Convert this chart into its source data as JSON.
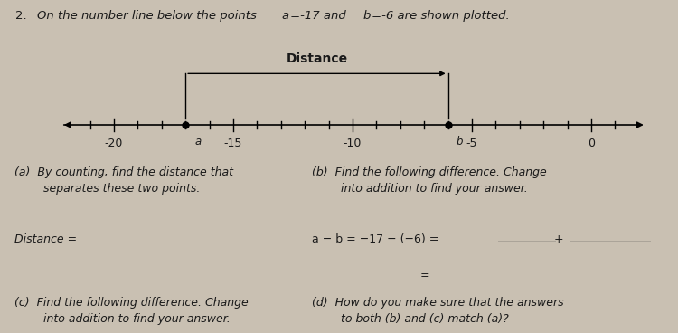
{
  "title_num": "2.",
  "title_text": " On the number line below the points ",
  "title_math": "a​=​-17",
  "title_and": " and ",
  "title_math2": "b​=​-6",
  "title_end": " are shown plotted.",
  "bg_color": "#c9c0b2",
  "number_line": {
    "xmin": -22,
    "xmax": 2,
    "ticks_minor": [
      -21,
      -20,
      -19,
      -18,
      -17,
      -16,
      -15,
      -14,
      -13,
      -12,
      -11,
      -10,
      -9,
      -8,
      -7,
      -6,
      -5,
      -4,
      -3,
      -2,
      -1,
      0,
      1
    ],
    "labeled_ticks": [
      -20,
      -15,
      -10,
      -5,
      0
    ],
    "point_a": -17,
    "point_b": -6
  },
  "distance_label": "Distance",
  "block_a_title": "(a)  By counting, find the distance that\n        separates these two points.",
  "block_b_title": "(b)  Find the following difference. Change\n        into addition to find your answer.",
  "distance_eq": "Distance = ",
  "formula": "a − b = −17 − (−6) = ",
  "plus_sign": " + ",
  "block_c_title": "(c)  Find the following difference. Change\n        into addition to find your answer.",
  "block_d_title": "(d)  How do you make sure that the answers\n        to both (b) and (c) match (a)?",
  "text_color": "#1a1a1a",
  "line_color": "#333333"
}
